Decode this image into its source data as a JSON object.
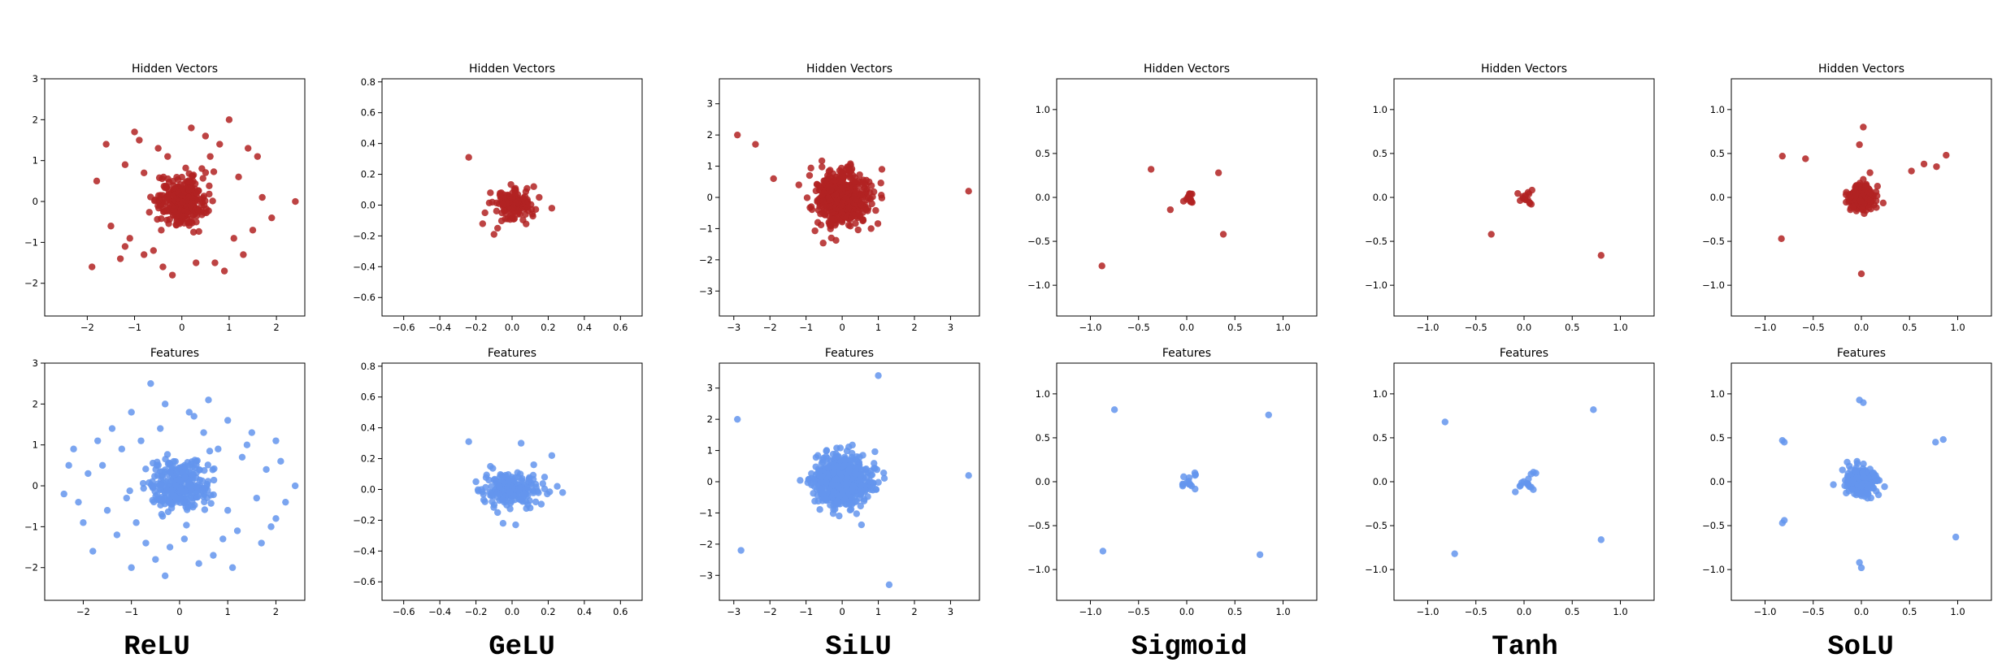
{
  "colors": {
    "hidden": "#b22222",
    "features": "#6495ed"
  },
  "column_labels": [
    "ReLU",
    "GeLU",
    "SiLU",
    "Sigmoid",
    "Tanh",
    "SoLU"
  ],
  "chart_data": [
    {
      "type": "scatter",
      "title": "Hidden Vectors",
      "xlim": [
        -2.9,
        2.6
      ],
      "ylim": [
        -2.8,
        3.0
      ],
      "xticks": [
        -2,
        -1,
        0,
        1,
        2
      ],
      "yticks": [
        -2,
        -1,
        0,
        1,
        2,
        3
      ],
      "cluster": {
        "cx": 0.0,
        "cy": 0.0,
        "sx": 0.25,
        "sy": 0.3,
        "n": 300
      },
      "points": [
        [
          -1.6,
          1.4
        ],
        [
          -1.0,
          1.7
        ],
        [
          1.0,
          2.0
        ],
        [
          0.2,
          1.8
        ],
        [
          -0.5,
          1.3
        ],
        [
          0.5,
          1.6
        ],
        [
          -1.2,
          0.9
        ],
        [
          1.4,
          1.3
        ],
        [
          -1.8,
          0.5
        ],
        [
          -1.5,
          -0.6
        ],
        [
          -1.9,
          -1.6
        ],
        [
          -1.1,
          -0.9
        ],
        [
          -0.8,
          -1.3
        ],
        [
          -0.2,
          -1.8
        ],
        [
          0.9,
          -1.7
        ],
        [
          1.3,
          -1.3
        ],
        [
          1.5,
          -0.7
        ],
        [
          1.7,
          0.1
        ],
        [
          2.4,
          0.0
        ],
        [
          1.9,
          -0.4
        ],
        [
          -0.9,
          1.5
        ],
        [
          0.7,
          -1.5
        ],
        [
          -1.3,
          -1.4
        ],
        [
          1.2,
          0.6
        ],
        [
          -0.6,
          -1.2
        ],
        [
          1.6,
          1.1
        ],
        [
          0.3,
          -1.5
        ],
        [
          -0.3,
          1.1
        ],
        [
          0.6,
          1.1
        ],
        [
          -0.8,
          0.7
        ],
        [
          1.1,
          -0.9
        ],
        [
          -1.2,
          -1.1
        ],
        [
          0.8,
          1.4
        ],
        [
          -0.4,
          -1.6
        ]
      ]
    },
    {
      "type": "scatter",
      "title": "Hidden Vectors",
      "xlim": [
        -0.72,
        0.72
      ],
      "ylim": [
        -0.72,
        0.82
      ],
      "xticks": [
        -0.6,
        -0.4,
        -0.2,
        0.0,
        0.2,
        0.4,
        0.6
      ],
      "yticks": [
        -0.6,
        -0.4,
        -0.2,
        0.0,
        0.2,
        0.4,
        0.6,
        0.8
      ],
      "cluster": {
        "cx": 0.0,
        "cy": 0.0,
        "sx": 0.05,
        "sy": 0.045,
        "n": 140
      },
      "points": [
        [
          -0.24,
          0.31
        ],
        [
          0.22,
          -0.02
        ],
        [
          -0.12,
          0.08
        ],
        [
          -0.1,
          -0.19
        ],
        [
          0.12,
          0.12
        ],
        [
          -0.08,
          -0.15
        ],
        [
          0.15,
          0.05
        ],
        [
          -0.15,
          -0.05
        ]
      ]
    },
    {
      "type": "scatter",
      "title": "Hidden Vectors",
      "xlim": [
        -3.4,
        3.8
      ],
      "ylim": [
        -3.8,
        3.8
      ],
      "xticks": [
        -3,
        -2,
        -1,
        0,
        1,
        2,
        3
      ],
      "yticks": [
        -3,
        -2,
        -1,
        0,
        1,
        2,
        3
      ],
      "cluster": {
        "cx": 0.0,
        "cy": 0.0,
        "sx": 0.35,
        "sy": 0.42,
        "n": 500
      },
      "points": [
        [
          -2.9,
          2.0
        ],
        [
          -2.4,
          1.7
        ],
        [
          -1.9,
          0.6
        ],
        [
          3.5,
          0.2
        ],
        [
          -0.3,
          -1.3
        ],
        [
          0.8,
          -1.0
        ],
        [
          -1.2,
          0.4
        ],
        [
          1.1,
          0.9
        ]
      ]
    },
    {
      "type": "scatter",
      "title": "Hidden Vectors",
      "xlim": [
        -1.35,
        1.35
      ],
      "ylim": [
        -1.35,
        1.35
      ],
      "xticks": [
        -1.0,
        -0.5,
        0.0,
        0.5,
        1.0
      ],
      "yticks": [
        -1.0,
        -0.5,
        0.0,
        0.5,
        1.0
      ],
      "cluster": {
        "cx": 0.0,
        "cy": 0.0,
        "sx": 0.05,
        "sy": 0.05,
        "n": 0
      },
      "cross": {
        "half": 0.08,
        "n": 14
      },
      "points": [
        [
          -0.37,
          0.32
        ],
        [
          0.33,
          0.28
        ],
        [
          -0.17,
          -0.14
        ],
        [
          0.38,
          -0.42
        ],
        [
          -0.88,
          -0.78
        ]
      ]
    },
    {
      "type": "scatter",
      "title": "Hidden Vectors",
      "xlim": [
        -1.35,
        1.35
      ],
      "ylim": [
        -1.35,
        1.35
      ],
      "xticks": [
        -1.0,
        -0.5,
        0.0,
        0.5,
        1.0
      ],
      "yticks": [
        -1.0,
        -0.5,
        0.0,
        0.5,
        1.0
      ],
      "cluster": {
        "cx": 0.0,
        "cy": 0.0,
        "sx": 0.05,
        "sy": 0.05,
        "n": 0
      },
      "cross": {
        "half": 0.09,
        "n": 14
      },
      "points": [
        [
          -0.34,
          -0.42
        ],
        [
          0.8,
          -0.66
        ]
      ]
    },
    {
      "type": "scatter",
      "title": "Hidden Vectors",
      "xlim": [
        -1.35,
        1.35
      ],
      "ylim": [
        -1.35,
        1.35
      ],
      "xticks": [
        -1.0,
        -0.5,
        0.0,
        0.5,
        1.0
      ],
      "yticks": [
        -1.0,
        -0.5,
        0.0,
        0.5,
        1.0
      ],
      "cluster": {
        "cx": 0.0,
        "cy": 0.0,
        "sx": 0.07,
        "sy": 0.07,
        "n": 220
      },
      "points": [
        [
          -0.82,
          0.47
        ],
        [
          -0.58,
          0.44
        ],
        [
          0.52,
          0.3
        ],
        [
          0.65,
          0.38
        ],
        [
          0.78,
          0.35
        ],
        [
          0.88,
          0.48
        ],
        [
          -0.83,
          -0.47
        ],
        [
          0.02,
          0.8
        ],
        [
          0.0,
          -0.87
        ],
        [
          -0.02,
          0.6
        ]
      ]
    },
    {
      "type": "scatter",
      "title": "Features",
      "xlim": [
        -2.8,
        2.6
      ],
      "ylim": [
        -2.8,
        3.0
      ],
      "xticks": [
        -2,
        -1,
        0,
        1,
        2
      ],
      "yticks": [
        -2,
        -1,
        0,
        1,
        2,
        3
      ],
      "cluster": {
        "cx": 0.0,
        "cy": 0.0,
        "sx": 0.3,
        "sy": 0.32,
        "n": 320
      },
      "points": [
        [
          -0.6,
          2.5
        ],
        [
          -1.0,
          1.8
        ],
        [
          -1.4,
          1.4
        ],
        [
          0.6,
          2.1
        ],
        [
          0.2,
          1.8
        ],
        [
          1.0,
          1.6
        ],
        [
          1.5,
          1.3
        ],
        [
          2.0,
          1.1
        ],
        [
          -2.2,
          0.9
        ],
        [
          -1.9,
          0.3
        ],
        [
          -2.4,
          -0.2
        ],
        [
          -2.0,
          -0.9
        ],
        [
          -1.8,
          -1.6
        ],
        [
          -1.0,
          -2.0
        ],
        [
          -0.3,
          -2.2
        ],
        [
          0.4,
          -1.9
        ],
        [
          1.1,
          -2.0
        ],
        [
          1.7,
          -1.4
        ],
        [
          2.0,
          -0.8
        ],
        [
          2.4,
          0.0
        ],
        [
          2.2,
          -0.4
        ],
        [
          -1.2,
          0.9
        ],
        [
          1.3,
          0.7
        ],
        [
          -0.7,
          -1.4
        ],
        [
          0.9,
          -1.3
        ],
        [
          -1.5,
          -0.6
        ],
        [
          1.6,
          -0.3
        ],
        [
          -0.4,
          1.4
        ],
        [
          0.5,
          1.3
        ],
        [
          -0.9,
          -0.9
        ],
        [
          0.8,
          0.9
        ],
        [
          -1.6,
          0.5
        ],
        [
          1.8,
          0.4
        ],
        [
          -0.2,
          -1.5
        ],
        [
          0.3,
          1.7
        ],
        [
          -1.3,
          -1.2
        ],
        [
          1.2,
          -1.1
        ],
        [
          -0.5,
          -1.8
        ],
        [
          0.7,
          -1.7
        ],
        [
          -1.7,
          1.1
        ],
        [
          1.4,
          1.0
        ],
        [
          -2.1,
          -0.4
        ],
        [
          2.1,
          0.6
        ],
        [
          -0.8,
          1.1
        ],
        [
          0.1,
          -1.3
        ],
        [
          1.0,
          -0.6
        ],
        [
          -1.1,
          -0.3
        ],
        [
          -0.3,
          2.0
        ],
        [
          1.9,
          -1.0
        ],
        [
          -2.3,
          0.5
        ]
      ]
    },
    {
      "type": "scatter",
      "title": "Features",
      "xlim": [
        -0.72,
        0.72
      ],
      "ylim": [
        -0.72,
        0.82
      ],
      "xticks": [
        -0.6,
        -0.4,
        -0.2,
        0.0,
        0.2,
        0.4,
        0.6
      ],
      "yticks": [
        -0.6,
        -0.4,
        -0.2,
        0.0,
        0.2,
        0.4,
        0.6,
        0.8
      ],
      "cluster": {
        "cx": 0.0,
        "cy": 0.0,
        "sx": 0.07,
        "sy": 0.05,
        "n": 200
      },
      "points": [
        [
          -0.24,
          0.31
        ],
        [
          0.05,
          0.3
        ],
        [
          0.22,
          0.22
        ],
        [
          -0.12,
          0.15
        ],
        [
          0.12,
          0.16
        ],
        [
          0.25,
          0.02
        ],
        [
          0.28,
          -0.02
        ],
        [
          -0.05,
          -0.22
        ],
        [
          0.02,
          -0.23
        ],
        [
          -0.08,
          -0.15
        ],
        [
          0.1,
          -0.12
        ],
        [
          -0.2,
          0.05
        ],
        [
          -0.15,
          -0.08
        ],
        [
          0.18,
          0.08
        ]
      ]
    },
    {
      "type": "scatter",
      "title": "Features",
      "xlim": [
        -3.4,
        3.8
      ],
      "ylim": [
        -3.8,
        3.8
      ],
      "xticks": [
        -3,
        -2,
        -1,
        0,
        1,
        2,
        3
      ],
      "yticks": [
        -3,
        -2,
        -1,
        0,
        1,
        2,
        3
      ],
      "cluster": {
        "cx": 0.0,
        "cy": 0.0,
        "sx": 0.38,
        "sy": 0.4,
        "n": 650
      },
      "points": [
        [
          -2.9,
          2.0
        ],
        [
          1.0,
          3.4
        ],
        [
          3.5,
          0.2
        ],
        [
          -2.8,
          -2.2
        ],
        [
          1.3,
          -3.3
        ]
      ]
    },
    {
      "type": "scatter",
      "title": "Features",
      "xlim": [
        -1.35,
        1.35
      ],
      "ylim": [
        -1.35,
        1.35
      ],
      "xticks": [
        -1.0,
        -0.5,
        0.0,
        0.5,
        1.0
      ],
      "yticks": [
        -1.0,
        -0.5,
        0.0,
        0.5,
        1.0
      ],
      "cluster": {
        "cx": 0.0,
        "cy": 0.0,
        "sx": 0.05,
        "sy": 0.05,
        "n": 0
      },
      "cross": {
        "half": 0.1,
        "n": 16
      },
      "points": [
        [
          -0.75,
          0.82
        ],
        [
          0.85,
          0.76
        ],
        [
          -0.87,
          -0.79
        ],
        [
          0.76,
          -0.83
        ]
      ]
    },
    {
      "type": "scatter",
      "title": "Features",
      "xlim": [
        -1.35,
        1.35
      ],
      "ylim": [
        -1.35,
        1.35
      ],
      "xticks": [
        -1.0,
        -0.5,
        0.0,
        0.5,
        1.0
      ],
      "yticks": [
        -1.0,
        -0.5,
        0.0,
        0.5,
        1.0
      ],
      "cluster": {
        "cx": 0.0,
        "cy": 0.0,
        "sx": 0.05,
        "sy": 0.05,
        "n": 0
      },
      "cross": {
        "half": 0.11,
        "n": 16
      },
      "points": [
        [
          -0.82,
          0.68
        ],
        [
          0.72,
          0.82
        ],
        [
          -0.72,
          -0.82
        ],
        [
          0.8,
          -0.66
        ]
      ]
    },
    {
      "type": "scatter",
      "title": "Features",
      "xlim": [
        -1.35,
        1.35
      ],
      "ylim": [
        -1.35,
        1.35
      ],
      "xticks": [
        -1.0,
        -0.5,
        0.0,
        0.5,
        1.0
      ],
      "yticks": [
        -1.0,
        -0.5,
        0.0,
        0.5,
        1.0
      ],
      "cluster": {
        "cx": 0.0,
        "cy": 0.0,
        "sx": 0.08,
        "sy": 0.08,
        "n": 260
      },
      "points": [
        [
          -0.82,
          0.47
        ],
        [
          -0.8,
          0.45
        ],
        [
          0.77,
          0.45
        ],
        [
          0.85,
          0.48
        ],
        [
          -0.82,
          -0.47
        ],
        [
          -0.8,
          -0.44
        ],
        [
          -0.02,
          0.93
        ],
        [
          0.02,
          0.9
        ],
        [
          -0.02,
          -0.92
        ],
        [
          0.0,
          -0.98
        ],
        [
          0.98,
          -0.63
        ]
      ]
    }
  ]
}
